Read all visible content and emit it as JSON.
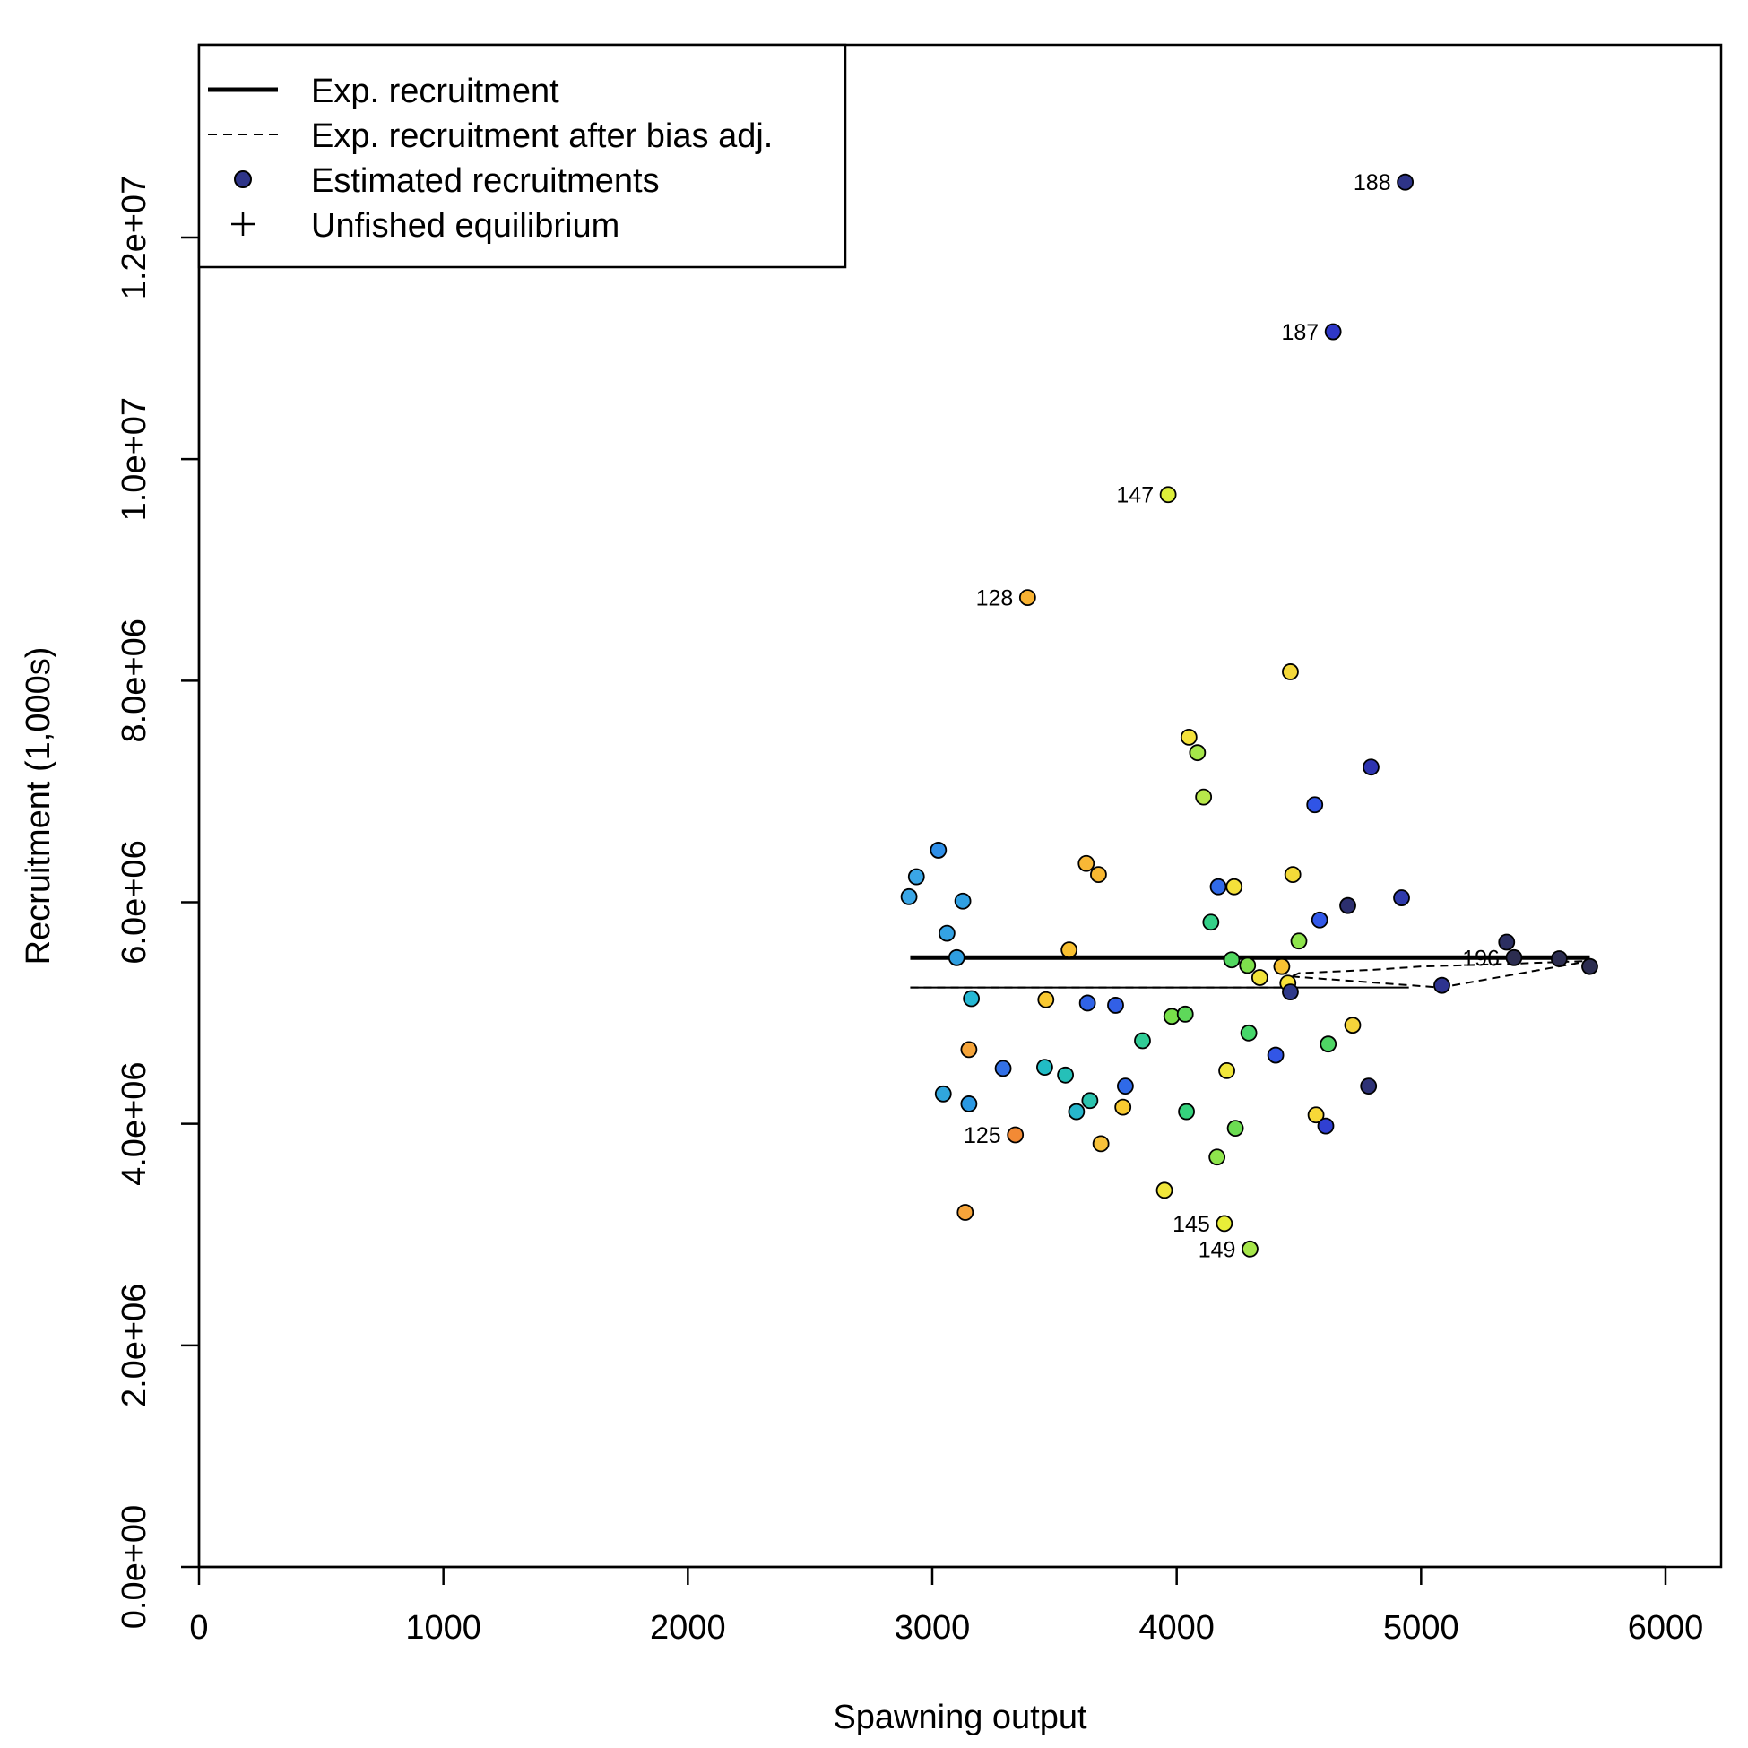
{
  "chart_data": {
    "type": "scatter",
    "xlabel": "Spawning output",
    "ylabel": "Recruitment (1,000s)",
    "xlim": [
      0,
      6250
    ],
    "ylim": [
      0,
      13700000
    ],
    "x_ticks": [
      0,
      1000,
      2000,
      3000,
      4000,
      5000,
      6000
    ],
    "x_tick_labels": [
      "0",
      "1000",
      "2000",
      "3000",
      "4000",
      "5000",
      "6000"
    ],
    "y_ticks": [
      0,
      2000000,
      4000000,
      6000000,
      8000000,
      10000000,
      12000000
    ],
    "y_tick_labels": [
      "0.0e+00",
      "2.0e+06",
      "4.0e+06",
      "6.0e+06",
      "8.0e+06",
      "1.0e+07",
      "1.2e+07"
    ],
    "grid": false,
    "legend": {
      "position": "top-left",
      "entries": [
        {
          "label": "Exp. recruitment",
          "symbol": "thick-line"
        },
        {
          "label": "Exp. recruitment after bias adj.",
          "symbol": "dashed-line"
        },
        {
          "label": "Estimated recruitments",
          "symbol": "filled-circle"
        },
        {
          "label": "Unfished equilibrium",
          "symbol": "plus"
        }
      ]
    },
    "expected_recruitment": {
      "x": [
        2910,
        5690
      ],
      "y": [
        5500000,
        5500000
      ]
    },
    "bias_adjusted_recruitment": {
      "x": [
        2910,
        4450,
        4470,
        4500,
        4800,
        5000,
        5300,
        5690
      ],
      "y": [
        5230000,
        5230000,
        5330000,
        5360000,
        5390000,
        5420000,
        5440000,
        5470000
      ]
    },
    "bias_adjusted_lower": {
      "x": [
        2910,
        4470,
        4950
      ],
      "y": [
        5230000,
        5230000,
        5230000
      ]
    },
    "bias_adjusted_upper": {
      "x": [
        4470,
        5080,
        5690
      ],
      "y": [
        5330000,
        5230000,
        5470000
      ]
    },
    "points": [
      {
        "x": 2905,
        "y": 6050000,
        "color": "#3aa6e6"
      },
      {
        "x": 2935,
        "y": 6230000,
        "color": "#3aa6e6"
      },
      {
        "x": 3025,
        "y": 6470000,
        "color": "#2f8fe8"
      },
      {
        "x": 3060,
        "y": 5720000,
        "color": "#34a2e4"
      },
      {
        "x": 3100,
        "y": 5500000,
        "color": "#2f9ee0"
      },
      {
        "x": 3125,
        "y": 6010000,
        "color": "#30a0e3"
      },
      {
        "x": 3160,
        "y": 5130000,
        "color": "#26b8d4"
      },
      {
        "x": 3045,
        "y": 4270000,
        "color": "#30a6dd"
      },
      {
        "x": 3150,
        "y": 4180000,
        "color": "#2a98e2"
      },
      {
        "x": 3150,
        "y": 4670000,
        "color": "#f5a43a"
      },
      {
        "x": 3135,
        "y": 3200000,
        "color": "#f5a43a"
      },
      {
        "x": 3290,
        "y": 4500000,
        "color": "#3370e6"
      },
      {
        "x": 3340,
        "y": 3900000,
        "color": "#f28a35",
        "label": "125"
      },
      {
        "x": 3390,
        "y": 8750000,
        "color": "#f8b232",
        "label": "128"
      },
      {
        "x": 3460,
        "y": 4510000,
        "color": "#21bcc5"
      },
      {
        "x": 3465,
        "y": 5120000,
        "color": "#f8c830"
      },
      {
        "x": 3545,
        "y": 4440000,
        "color": "#25c0b8"
      },
      {
        "x": 3560,
        "y": 5570000,
        "color": "#f8c030"
      },
      {
        "x": 3590,
        "y": 4110000,
        "color": "#27b6cc"
      },
      {
        "x": 3630,
        "y": 6350000,
        "color": "#f8b836"
      },
      {
        "x": 3635,
        "y": 5090000,
        "color": "#3063e6"
      },
      {
        "x": 3645,
        "y": 4210000,
        "color": "#2cc4ae"
      },
      {
        "x": 3680,
        "y": 6250000,
        "color": "#f8b832"
      },
      {
        "x": 3690,
        "y": 3820000,
        "color": "#f8c23a"
      },
      {
        "x": 3750,
        "y": 5070000,
        "color": "#3260e6"
      },
      {
        "x": 3780,
        "y": 4150000,
        "color": "#f8ca30"
      },
      {
        "x": 3790,
        "y": 4340000,
        "color": "#2f6ae8"
      },
      {
        "x": 3860,
        "y": 4750000,
        "color": "#30cc96"
      },
      {
        "x": 3950,
        "y": 3400000,
        "color": "#f0e63a"
      },
      {
        "x": 3965,
        "y": 9680000,
        "color": "#dcee3a",
        "label": "147"
      },
      {
        "x": 3980,
        "y": 4970000,
        "color": "#78e04a"
      },
      {
        "x": 4035,
        "y": 4990000,
        "color": "#5ed85a"
      },
      {
        "x": 4040,
        "y": 4110000,
        "color": "#35d27c"
      },
      {
        "x": 4050,
        "y": 7490000,
        "color": "#f4e23a"
      },
      {
        "x": 4085,
        "y": 7350000,
        "color": "#a6e64a"
      },
      {
        "x": 4110,
        "y": 6950000,
        "color": "#b8e84a"
      },
      {
        "x": 4140,
        "y": 5820000,
        "color": "#34d088"
      },
      {
        "x": 4165,
        "y": 3700000,
        "color": "#8ee44c"
      },
      {
        "x": 4170,
        "y": 6140000,
        "color": "#306ae8"
      },
      {
        "x": 4195,
        "y": 3100000,
        "color": "#e8ee38",
        "label": "145"
      },
      {
        "x": 4205,
        "y": 4480000,
        "color": "#f0e63a"
      },
      {
        "x": 4225,
        "y": 5480000,
        "color": "#52d860"
      },
      {
        "x": 4235,
        "y": 6140000,
        "color": "#f4e03a"
      },
      {
        "x": 4240,
        "y": 3960000,
        "color": "#6cdc52"
      },
      {
        "x": 4290,
        "y": 5430000,
        "color": "#7ee04c"
      },
      {
        "x": 4295,
        "y": 4820000,
        "color": "#46d66a"
      },
      {
        "x": 4300,
        "y": 2870000,
        "color": "#a6e64a",
        "label": "149"
      },
      {
        "x": 4340,
        "y": 5320000,
        "color": "#f0e23a"
      },
      {
        "x": 4405,
        "y": 4620000,
        "color": "#3256e6"
      },
      {
        "x": 4430,
        "y": 5420000,
        "color": "#f8c232"
      },
      {
        "x": 4455,
        "y": 5270000,
        "color": "#f8e23a"
      },
      {
        "x": 4465,
        "y": 8080000,
        "color": "#f4d83a"
      },
      {
        "x": 4465,
        "y": 5190000,
        "color": "#2f3a8a"
      },
      {
        "x": 4475,
        "y": 6250000,
        "color": "#f4da38"
      },
      {
        "x": 4500,
        "y": 5650000,
        "color": "#8ee44c"
      },
      {
        "x": 4565,
        "y": 6880000,
        "color": "#3054e6"
      },
      {
        "x": 4570,
        "y": 4080000,
        "color": "#f8d838"
      },
      {
        "x": 4585,
        "y": 5840000,
        "color": "#3258e8"
      },
      {
        "x": 4610,
        "y": 3980000,
        "color": "#3040d2"
      },
      {
        "x": 4620,
        "y": 4720000,
        "color": "#4ed464"
      },
      {
        "x": 4640,
        "y": 11150000,
        "color": "#2f38c8",
        "label": "187"
      },
      {
        "x": 4700,
        "y": 5970000,
        "color": "#2c2f6e"
      },
      {
        "x": 4720,
        "y": 4890000,
        "color": "#f4d43a"
      },
      {
        "x": 4785,
        "y": 4340000,
        "color": "#2e3276"
      },
      {
        "x": 4795,
        "y": 7220000,
        "color": "#2e34b0"
      },
      {
        "x": 4920,
        "y": 6040000,
        "color": "#2f3aac"
      },
      {
        "x": 4935,
        "y": 12500000,
        "color": "#2e3488",
        "label": "188"
      },
      {
        "x": 5085,
        "y": 5250000,
        "color": "#2e3490"
      },
      {
        "x": 5350,
        "y": 5640000,
        "color": "#2c2f62"
      },
      {
        "x": 5380,
        "y": 5500000,
        "color": "#2c2d50",
        "label": "196"
      },
      {
        "x": 5565,
        "y": 5490000,
        "color": "#2c2d50"
      },
      {
        "x": 5690,
        "y": 5420000,
        "color": "#2c2d50"
      }
    ]
  }
}
